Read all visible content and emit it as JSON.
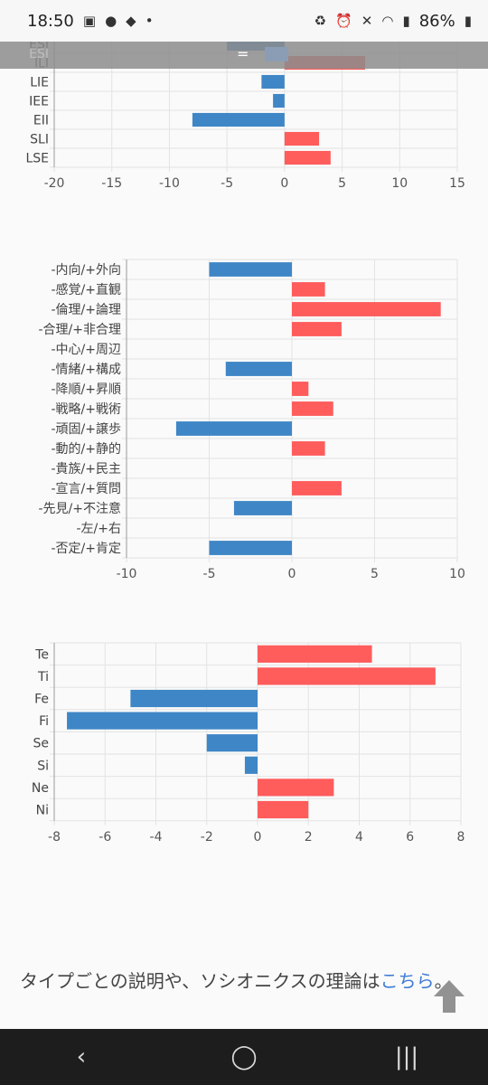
{
  "status": {
    "time": "18:50",
    "battery": "86%",
    "left_icons": [
      "gallery-icon",
      "messenger-icon",
      "fish-icon",
      "dot-icon"
    ],
    "right_icons": [
      "recycle-icon",
      "alarm-icon",
      "mute-icon",
      "wifi-icon",
      "signal-icon",
      "battery-icon"
    ]
  },
  "sticky": {
    "label": "ESI",
    "symbol": "="
  },
  "colors": {
    "positive": "#ff5c5c",
    "negative": "#3f86c6",
    "grid": "#e3e3e3",
    "axis": "#999999"
  },
  "chart_data": [
    {
      "type": "bar",
      "orientation": "horizontal",
      "categories": [
        "ESI",
        "ILI",
        "LIE",
        "IEE",
        "EII",
        "SLI",
        "LSE"
      ],
      "values": [
        -5,
        7,
        -2,
        -1,
        -8,
        3,
        4
      ],
      "xlim": [
        -20,
        15
      ],
      "xticks": [
        -20,
        -15,
        -10,
        -5,
        0,
        5,
        10,
        15
      ]
    },
    {
      "type": "bar",
      "orientation": "horizontal",
      "categories": [
        "-内向/+外向",
        "-感覚/+直観",
        "-倫理/+論理",
        "-合理/+非合理",
        "-中心/+周辺",
        "-情緒/+構成",
        "-降順/+昇順",
        "-戦略/+戦術",
        "-頑固/+譲歩",
        "-動的/+静的",
        "-貴族/+民主",
        "-宣言/+質問",
        "-先見/+不注意",
        "-左/+右",
        "-否定/+肯定"
      ],
      "values": [
        -5,
        2,
        9,
        3,
        0,
        -4,
        1,
        2.5,
        -7,
        2,
        0,
        3,
        -3.5,
        0,
        -5
      ],
      "xlim": [
        -10,
        10
      ],
      "xticks": [
        -10,
        -5,
        0,
        5,
        10
      ]
    },
    {
      "type": "bar",
      "orientation": "horizontal",
      "categories": [
        "Te",
        "Ti",
        "Fe",
        "Fi",
        "Se",
        "Si",
        "Ne",
        "Ni"
      ],
      "values": [
        4.5,
        7,
        -5,
        -7.5,
        -2,
        -0.5,
        3,
        2
      ],
      "xlim": [
        -8,
        8
      ],
      "xticks": [
        -8,
        -6,
        -4,
        -2,
        0,
        2,
        4,
        6,
        8
      ]
    }
  ],
  "footer": {
    "text_before": "タイプごとの説明や、ソシオニクスの理論は",
    "link": "こちら",
    "text_after": "。"
  },
  "nav": {
    "back": "‹",
    "home": "◯",
    "recents": "|||"
  }
}
